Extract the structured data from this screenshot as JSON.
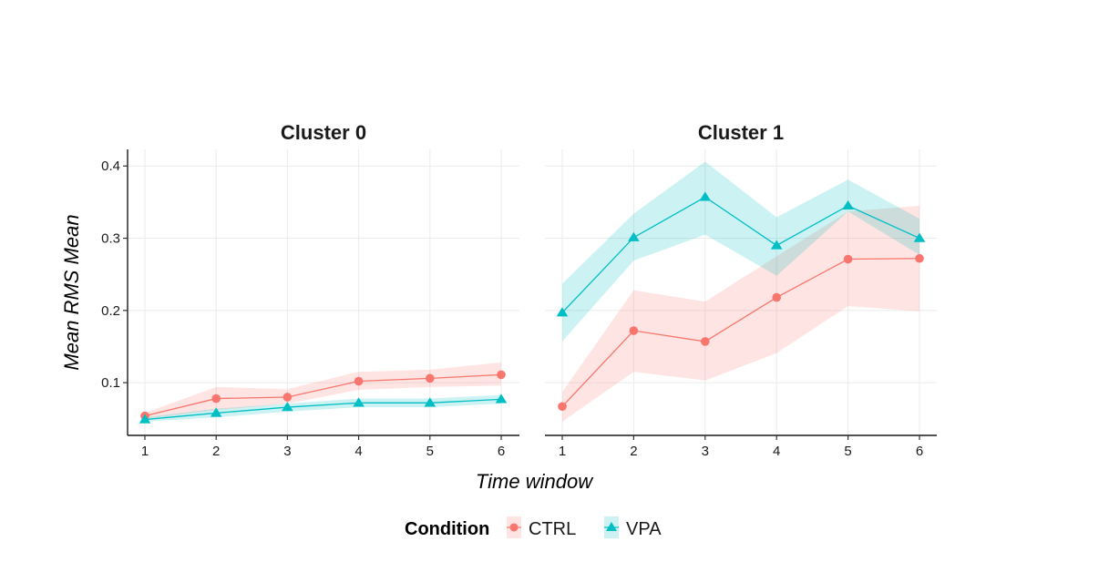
{
  "chart_data": [
    {
      "type": "line",
      "title": "Cluster 0",
      "xlabel": "Time window",
      "ylabel": "Mean RMS Mean",
      "x": [
        1,
        2,
        3,
        4,
        5,
        6
      ],
      "ylim": [
        0.027,
        0.423
      ],
      "yticks": [
        0.1,
        0.2,
        0.3,
        0.4
      ],
      "ytick_labels": [
        "0.1",
        "0.2",
        "0.3",
        "0.4"
      ],
      "xtick_labels": [
        "1",
        "2",
        "3",
        "4",
        "5",
        "6"
      ],
      "grid": true,
      "series": [
        {
          "name": "CTRL",
          "color": "#F8766D",
          "marker": "circle",
          "values": [
            0.054,
            0.078,
            0.08,
            0.102,
            0.106,
            0.111
          ],
          "lower": [
            0.05,
            0.062,
            0.071,
            0.09,
            0.094,
            0.096
          ],
          "upper": [
            0.058,
            0.094,
            0.091,
            0.115,
            0.118,
            0.128
          ]
        },
        {
          "name": "VPA",
          "color": "#00BFC4",
          "marker": "triangle",
          "values": [
            0.049,
            0.058,
            0.066,
            0.072,
            0.072,
            0.077
          ],
          "lower": [
            0.046,
            0.052,
            0.06,
            0.066,
            0.066,
            0.071
          ],
          "upper": [
            0.052,
            0.064,
            0.071,
            0.078,
            0.078,
            0.083
          ]
        }
      ]
    },
    {
      "type": "line",
      "title": "Cluster 1",
      "xlabel": "Time window",
      "ylabel": "Mean RMS Mean",
      "x": [
        1,
        2,
        3,
        4,
        5,
        6
      ],
      "ylim": [
        0.027,
        0.423
      ],
      "yticks": [
        0.1,
        0.2,
        0.3,
        0.4
      ],
      "xtick_labels": [
        "1",
        "2",
        "3",
        "4",
        "5",
        "6"
      ],
      "grid": true,
      "series": [
        {
          "name": "CTRL",
          "color": "#F8766D",
          "marker": "circle",
          "values": [
            0.067,
            0.172,
            0.157,
            0.218,
            0.271,
            0.272
          ],
          "lower": [
            0.046,
            0.115,
            0.103,
            0.141,
            0.206,
            0.199
          ],
          "upper": [
            0.087,
            0.228,
            0.212,
            0.275,
            0.337,
            0.345
          ]
        },
        {
          "name": "VPA",
          "color": "#00BFC4",
          "marker": "triangle",
          "values": [
            0.197,
            0.301,
            0.357,
            0.29,
            0.345,
            0.3
          ],
          "lower": [
            0.157,
            0.269,
            0.305,
            0.248,
            0.337,
            0.277
          ],
          "upper": [
            0.237,
            0.334,
            0.406,
            0.329,
            0.381,
            0.327
          ]
        }
      ]
    }
  ],
  "axis": {
    "xlabel": "Time window",
    "ylabel": "Mean RMS Mean"
  },
  "legend": {
    "title": "Condition",
    "position": "bottom",
    "items": [
      {
        "label": "CTRL",
        "color": "#F8766D",
        "marker": "circle"
      },
      {
        "label": "VPA",
        "color": "#00BFC4",
        "marker": "triangle"
      }
    ]
  }
}
